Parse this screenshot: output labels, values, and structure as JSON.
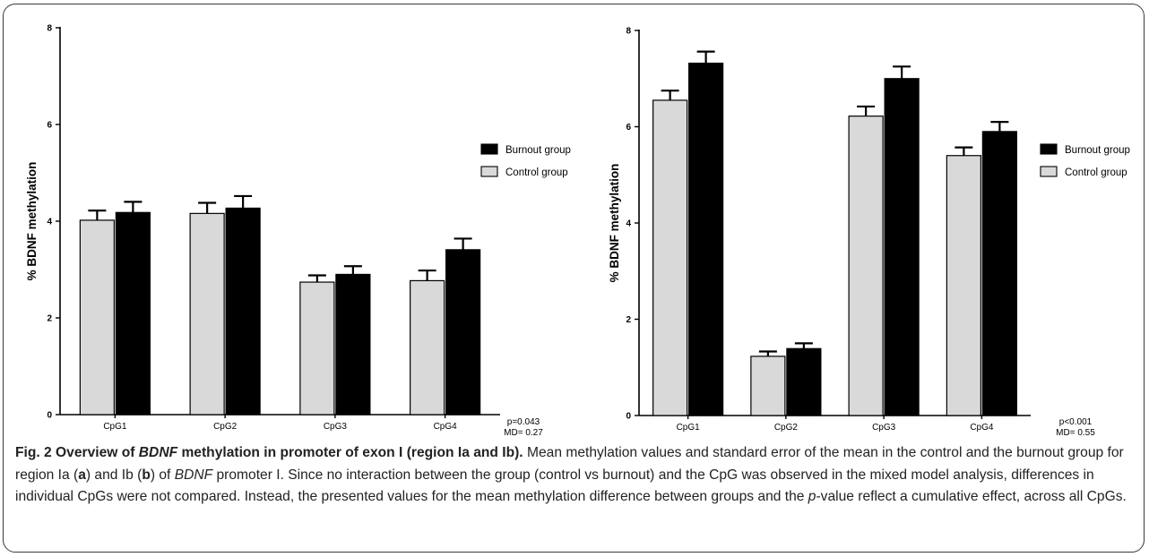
{
  "colors": {
    "control": "#d9d9d9",
    "burnout": "#000000",
    "axis": "#000000",
    "frame": "#3a3a3a"
  },
  "panels": {
    "a": {
      "stat1": "p=0.043",
      "stat2": "MD= 0.27"
    },
    "b": {
      "stat1": "p<0.001",
      "stat2": "MD= 0.55"
    }
  },
  "caption": {
    "title_pre": "Fig. 2 Overview of ",
    "title_em": "BDNF",
    "title_post": " methylation in promoter of exon I (region Ia and Ib).",
    "body_1": " Mean methylation values and standard error of the mean in the control and the burnout group for region Ia (",
    "letter_a": "a",
    "body_2": ") and Ib (",
    "letter_b": "b",
    "body_3": ") of ",
    "body_em": "BDNF",
    "body_4": " promoter I. Since no interaction between the group (control vs burnout) and the CpG was observed in the mixed model analysis, differences in individual CpGs were not compared. Instead, the presented values for the mean methylation difference between groups and the ",
    "body_p": "p",
    "body_5": "-value reflect a cumulative effect, across all CpGs."
  },
  "chart_data": [
    {
      "type": "bar",
      "panel": "a",
      "categories": [
        "CpG1",
        "CpG2",
        "CpG3",
        "CpG4"
      ],
      "ylabel": "% BDNF methylation",
      "xlabel": "",
      "ylim": [
        0,
        8
      ],
      "yticks": [
        0,
        2,
        4,
        6,
        8
      ],
      "series": [
        {
          "name": "Control group",
          "values": [
            4.02,
            4.16,
            2.74,
            2.77
          ],
          "sem": [
            0.2,
            0.22,
            0.14,
            0.21
          ]
        },
        {
          "name": "Burnout group",
          "values": [
            4.18,
            4.27,
            2.9,
            3.41
          ],
          "sem": [
            0.22,
            0.25,
            0.17,
            0.23
          ]
        }
      ],
      "legend": [
        "Burnout group",
        "Control group"
      ],
      "legend_position": "right"
    },
    {
      "type": "bar",
      "panel": "b",
      "categories": [
        "CpG1",
        "CpG2",
        "CpG3",
        "CpG4"
      ],
      "ylabel": "% BDNF methylation",
      "xlabel": "",
      "ylim": [
        0,
        8
      ],
      "yticks": [
        0,
        2,
        4,
        6,
        8
      ],
      "series": [
        {
          "name": "Control group",
          "values": [
            6.55,
            1.23,
            6.22,
            5.4
          ],
          "sem": [
            0.2,
            0.1,
            0.2,
            0.17
          ]
        },
        {
          "name": "Burnout group",
          "values": [
            7.32,
            1.39,
            7.0,
            5.9
          ],
          "sem": [
            0.24,
            0.11,
            0.25,
            0.2
          ]
        }
      ],
      "legend": [
        "Burnout group",
        "Control group"
      ],
      "legend_position": "right"
    }
  ]
}
